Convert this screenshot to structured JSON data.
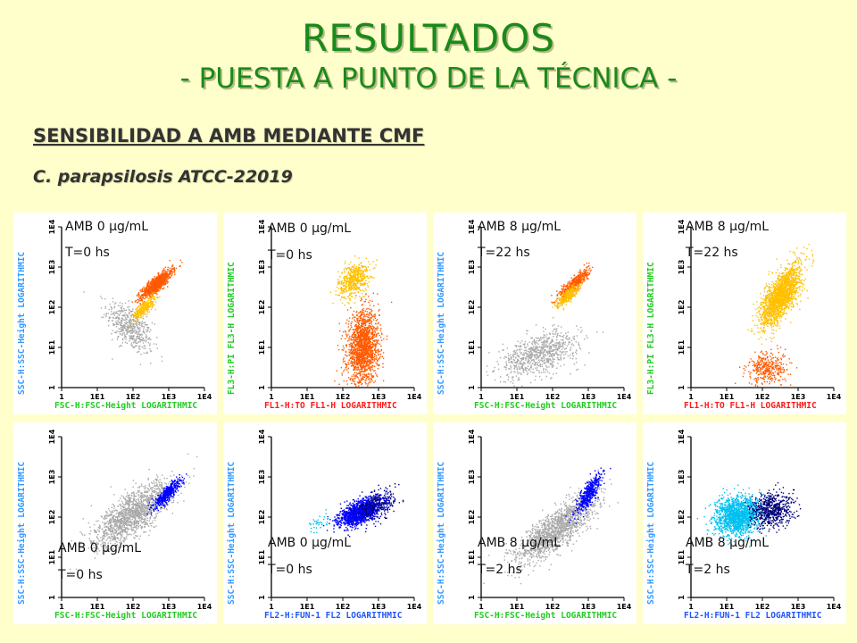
{
  "header": {
    "title": "RESULTADOS",
    "subtitle": "- PUESTA A PUNTO DE LA TÉCNICA -",
    "section": "SENSIBILIDAD A AMB MEDIANTE CMF",
    "species": "C. parapsilosis ATCC-22019"
  },
  "colors": {
    "title": "#1a8a1a",
    "background": "#ffffcc",
    "gray": "#a9a9a9",
    "orange": "#ff5a00",
    "yellow": "#ffc000",
    "blue": "#0000ff",
    "navy": "#00007a",
    "cyan": "#00c0f0",
    "xlabel_green": "#22cc22",
    "xlabel_red": "#ff1a1a",
    "xlabel_blue": "#2255ff",
    "ylabel_blue": "#3399ff",
    "ylabel_green": "#22cc22"
  },
  "ticks": [
    "1",
    "1E1",
    "1E2",
    "1E3",
    "1E4"
  ],
  "chart_data": [
    {
      "type": "scatter",
      "ann1": "AMB 0 µg/mL",
      "ann2": "T=0 hs",
      "xlabel": "FSC-H:FSC-Height LOGARITHMIC",
      "ylabel": "SSC-H:SSC-Height LOGARITHMIC",
      "xlim": [
        1,
        10000
      ],
      "ylim": [
        1,
        10000
      ],
      "log": true,
      "series": [
        {
          "color": "gray",
          "cx": 1.9,
          "cy": 1.5,
          "sx": 0.32,
          "sy": 0.32,
          "r": -0.6,
          "n": 500
        },
        {
          "color": "orange",
          "cx": 2.65,
          "cy": 2.6,
          "sx": 0.22,
          "sy": 0.18,
          "r": 0.85,
          "n": 900
        },
        {
          "color": "yellow",
          "cx": 2.3,
          "cy": 2.0,
          "sx": 0.15,
          "sy": 0.13,
          "r": 0.75,
          "n": 300
        }
      ]
    },
    {
      "type": "scatter",
      "ann1": "AMB 0 µg/mL",
      "ann2": "T=0 hs",
      "xlabel": "FL1-H:TO FL1-H LOGARITHMIC",
      "ylabel": "FL3-H:PI FL3-H LOGARITHMIC",
      "xlim": [
        1,
        10000
      ],
      "ylim": [
        1,
        10000
      ],
      "log": true,
      "series": [
        {
          "color": "yellow",
          "cx": 2.3,
          "cy": 2.7,
          "sx": 0.22,
          "sy": 0.22,
          "r": 0.4,
          "n": 500
        },
        {
          "color": "orange",
          "cx": 2.55,
          "cy": 1.0,
          "sx": 0.22,
          "sy": 0.45,
          "r": 0.1,
          "n": 1600
        }
      ]
    },
    {
      "type": "scatter",
      "ann1": "AMB 8 µg/mL",
      "ann2": "T=22 hs",
      "xlabel": "FSC-H:FSC-Height LOGARITHMIC",
      "ylabel": "SSC-H:SSC-Height LOGARITHMIC",
      "xlim": [
        1,
        10000
      ],
      "ylim": [
        1,
        10000
      ],
      "log": true,
      "series": [
        {
          "color": "gray",
          "cx": 1.6,
          "cy": 0.85,
          "sx": 0.55,
          "sy": 0.28,
          "r": 0.5,
          "n": 800
        },
        {
          "color": "orange",
          "cx": 2.6,
          "cy": 2.6,
          "sx": 0.2,
          "sy": 0.18,
          "r": 0.85,
          "n": 500
        },
        {
          "color": "yellow",
          "cx": 2.4,
          "cy": 2.3,
          "sx": 0.15,
          "sy": 0.13,
          "r": 0.8,
          "n": 300
        }
      ]
    },
    {
      "type": "scatter",
      "ann1": "AMB 8 µg/mL",
      "ann2": "T=22 hs",
      "xlabel": "FL1-H:TO FL1-H LOGARITHMIC",
      "ylabel": "FL3-H:PI FL3-H LOGARITHMIC",
      "xlim": [
        1,
        10000
      ],
      "ylim": [
        1,
        10000
      ],
      "log": true,
      "series": [
        {
          "color": "yellow",
          "cx": 2.5,
          "cy": 2.3,
          "sx": 0.28,
          "sy": 0.38,
          "r": 0.7,
          "n": 1800
        },
        {
          "color": "orange",
          "cx": 2.15,
          "cy": 0.5,
          "sx": 0.3,
          "sy": 0.2,
          "r": 0.1,
          "n": 350
        }
      ]
    },
    {
      "type": "scatter",
      "ann1": "AMB 0 µg/mL",
      "ann2": "T=0 hs",
      "xlabel": "FSC-H:FSC-Height LOGARITHMIC",
      "ylabel": "SSC-H:SSC-Height LOGARITHMIC",
      "xlim": [
        1,
        10000
      ],
      "ylim": [
        1,
        10000
      ],
      "log": true,
      "series": [
        {
          "color": "gray",
          "cx": 2.0,
          "cy": 2.1,
          "sx": 0.55,
          "sy": 0.4,
          "r": 0.75,
          "n": 1500
        },
        {
          "color": "blue",
          "cx": 2.95,
          "cy": 2.6,
          "sx": 0.18,
          "sy": 0.17,
          "r": 0.85,
          "n": 500
        }
      ]
    },
    {
      "type": "scatter",
      "ann1": "AMB 0 µg/mL",
      "ann2": "T=0 hs",
      "xlabel": "FL2-H:FUN-1 FL2 LOGARITHMIC",
      "ylabel": "SSC-H:SSC-Height LOGARITHMIC",
      "xlim": [
        1,
        10000
      ],
      "ylim": [
        1,
        10000
      ],
      "log": true,
      "series": [
        {
          "color": "cyan",
          "cx": 1.3,
          "cy": 1.85,
          "sx": 0.15,
          "sy": 0.12,
          "r": 0.3,
          "n": 35
        },
        {
          "color": "blue",
          "cx": 2.5,
          "cy": 2.15,
          "sx": 0.3,
          "sy": 0.17,
          "r": 0.6,
          "n": 1400
        },
        {
          "color": "navy",
          "cx": 2.9,
          "cy": 2.3,
          "sx": 0.3,
          "sy": 0.2,
          "r": 0.5,
          "n": 250
        }
      ]
    },
    {
      "type": "scatter",
      "ann1": "AMB 8 µg/mL",
      "ann2": "T=2 hs",
      "xlabel": "FSC-H:FSC-Height LOGARITHMIC",
      "ylabel": "SSC-H:SSC-Height LOGARITHMIC",
      "xlim": [
        1,
        10000
      ],
      "ylim": [
        1,
        10000
      ],
      "log": true,
      "series": [
        {
          "color": "gray",
          "cx": 2.1,
          "cy": 1.7,
          "sx": 0.55,
          "sy": 0.42,
          "r": 0.8,
          "n": 1500
        },
        {
          "color": "blue",
          "cx": 3.0,
          "cy": 2.6,
          "sx": 0.18,
          "sy": 0.25,
          "r": 0.8,
          "n": 450
        }
      ]
    },
    {
      "type": "scatter",
      "ann1": "AMB 8 µg/mL",
      "ann2": "T=2 hs",
      "xlabel": "FL2-H:FUN-1 FL2 LOGARITHMIC",
      "ylabel": "SSC-H:SSC-Height LOGARITHMIC",
      "xlim": [
        1,
        10000
      ],
      "ylim": [
        1,
        10000
      ],
      "log": true,
      "series": [
        {
          "color": "cyan",
          "cx": 1.3,
          "cy": 2.05,
          "sx": 0.32,
          "sy": 0.23,
          "r": 0.2,
          "n": 1500
        },
        {
          "color": "navy",
          "cx": 2.25,
          "cy": 2.2,
          "sx": 0.3,
          "sy": 0.22,
          "r": 0.1,
          "n": 600
        }
      ]
    }
  ]
}
